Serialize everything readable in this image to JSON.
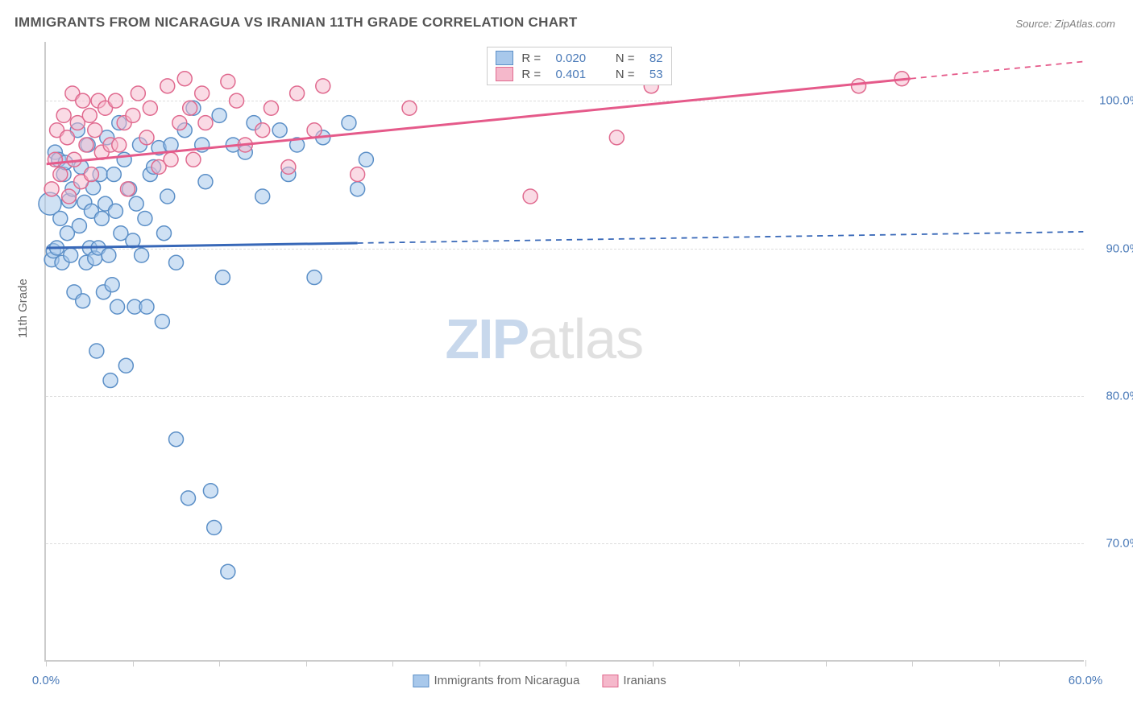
{
  "title": "IMMIGRANTS FROM NICARAGUA VS IRANIAN 11TH GRADE CORRELATION CHART",
  "source": "Source: ZipAtlas.com",
  "ylabel": "11th Grade",
  "watermark": {
    "part1": "ZIP",
    "part2": "atlas"
  },
  "chart": {
    "type": "scatter",
    "xlim": [
      0,
      60
    ],
    "ylim": [
      62,
      104
    ],
    "background_color": "#ffffff",
    "grid_color": "#dddddd",
    "axis_color": "#cccccc",
    "yticks": [
      {
        "v": 70,
        "label": "70.0%"
      },
      {
        "v": 80,
        "label": "80.0%"
      },
      {
        "v": 90,
        "label": "90.0%"
      },
      {
        "v": 100,
        "label": "100.0%"
      }
    ],
    "xticks_major": [
      0,
      60
    ],
    "xticks_minor": [
      5,
      10,
      15,
      20,
      25,
      30,
      35,
      40,
      45,
      50,
      55
    ],
    "xlabels": [
      {
        "v": 0,
        "label": "0.0%"
      },
      {
        "v": 60,
        "label": "60.0%"
      }
    ],
    "series": [
      {
        "name": "Immigrants from Nicaragua",
        "fill": "#a8c8eb",
        "stroke": "#5b8fc7",
        "fill_opacity": 0.55,
        "marker_r": 9,
        "line_color": "#3868b8",
        "line_width": 3,
        "r_value": "0.020",
        "n_value": "82",
        "trend": {
          "x1": 0,
          "y1": 90.0,
          "x2": 60,
          "y2": 91.1,
          "solid_until_x": 18
        },
        "points": [
          [
            0.2,
            93.0,
            14
          ],
          [
            0.3,
            89.2,
            9
          ],
          [
            0.4,
            89.8,
            9
          ],
          [
            0.5,
            96.5,
            9
          ],
          [
            0.6,
            90.0,
            9
          ],
          [
            0.7,
            96.0,
            9
          ],
          [
            0.8,
            92.0,
            9
          ],
          [
            0.9,
            89.0,
            9
          ],
          [
            1.0,
            95.0,
            9
          ],
          [
            1.1,
            95.8,
            9
          ],
          [
            1.2,
            91.0,
            9
          ],
          [
            1.3,
            93.2,
            9
          ],
          [
            1.4,
            89.5,
            9
          ],
          [
            1.5,
            94.0,
            9
          ],
          [
            1.6,
            87.0,
            9
          ],
          [
            1.8,
            98.0,
            9
          ],
          [
            1.9,
            91.5,
            9
          ],
          [
            2.0,
            95.5,
            9
          ],
          [
            2.1,
            86.4,
            9
          ],
          [
            2.2,
            93.1,
            9
          ],
          [
            2.3,
            89.0,
            9
          ],
          [
            2.4,
            97.0,
            9
          ],
          [
            2.5,
            90.0,
            9
          ],
          [
            2.6,
            92.5,
            9
          ],
          [
            2.7,
            94.1,
            9
          ],
          [
            2.8,
            89.3,
            9
          ],
          [
            2.9,
            83.0,
            9
          ],
          [
            3.0,
            90.0,
            9
          ],
          [
            3.1,
            95.0,
            9
          ],
          [
            3.2,
            92.0,
            9
          ],
          [
            3.3,
            87.0,
            9
          ],
          [
            3.4,
            93.0,
            9
          ],
          [
            3.5,
            97.5,
            9
          ],
          [
            3.6,
            89.5,
            9
          ],
          [
            3.7,
            81.0,
            9
          ],
          [
            3.8,
            87.5,
            9
          ],
          [
            3.9,
            95.0,
            9
          ],
          [
            4.0,
            92.5,
            9
          ],
          [
            4.1,
            86.0,
            9
          ],
          [
            4.2,
            98.5,
            9
          ],
          [
            4.3,
            91.0,
            9
          ],
          [
            4.5,
            96.0,
            9
          ],
          [
            4.6,
            82.0,
            9
          ],
          [
            4.8,
            94.0,
            9
          ],
          [
            5.0,
            90.5,
            9
          ],
          [
            5.1,
            86.0,
            9
          ],
          [
            5.2,
            93.0,
            9
          ],
          [
            5.4,
            97.0,
            9
          ],
          [
            5.5,
            89.5,
            9
          ],
          [
            5.7,
            92.0,
            9
          ],
          [
            5.8,
            86.0,
            9
          ],
          [
            6.0,
            95.0,
            9
          ],
          [
            6.2,
            95.5,
            9
          ],
          [
            6.5,
            96.8,
            9
          ],
          [
            6.7,
            85.0,
            9
          ],
          [
            6.8,
            91.0,
            9
          ],
          [
            7.0,
            93.5,
            9
          ],
          [
            7.2,
            97.0,
            9
          ],
          [
            7.5,
            77.0,
            9
          ],
          [
            7.5,
            89.0,
            9
          ],
          [
            8.0,
            98.0,
            9
          ],
          [
            8.2,
            73.0,
            9
          ],
          [
            8.5,
            99.5,
            9
          ],
          [
            9.0,
            97.0,
            9
          ],
          [
            9.2,
            94.5,
            9
          ],
          [
            9.5,
            73.5,
            9
          ],
          [
            9.7,
            71.0,
            9
          ],
          [
            10.0,
            99.0,
            9
          ],
          [
            10.2,
            88.0,
            9
          ],
          [
            10.5,
            68.0,
            9
          ],
          [
            10.8,
            97.0,
            9
          ],
          [
            11.5,
            96.5,
            9
          ],
          [
            12.0,
            98.5,
            9
          ],
          [
            12.5,
            93.5,
            9
          ],
          [
            13.5,
            98.0,
            9
          ],
          [
            14.0,
            95.0,
            9
          ],
          [
            14.5,
            97.0,
            9
          ],
          [
            15.5,
            88.0,
            9
          ],
          [
            16.0,
            97.5,
            9
          ],
          [
            17.5,
            98.5,
            9
          ],
          [
            18.0,
            94.0,
            9
          ],
          [
            18.5,
            96.0,
            9
          ]
        ]
      },
      {
        "name": "Iranians",
        "fill": "#f5b8cb",
        "stroke": "#e06a8f",
        "fill_opacity": 0.5,
        "marker_r": 9,
        "line_color": "#e55a8a",
        "line_width": 3,
        "r_value": "0.401",
        "n_value": "53",
        "trend": {
          "x1": 0,
          "y1": 95.7,
          "x2": 50,
          "y2": 101.5,
          "solid_until_x": 50
        },
        "points": [
          [
            0.3,
            94.0,
            9
          ],
          [
            0.5,
            96.0,
            9
          ],
          [
            0.6,
            98.0,
            9
          ],
          [
            0.8,
            95.0,
            9
          ],
          [
            1.0,
            99.0,
            9
          ],
          [
            1.2,
            97.5,
            9
          ],
          [
            1.3,
            93.5,
            9
          ],
          [
            1.5,
            100.5,
            9
          ],
          [
            1.6,
            96.0,
            9
          ],
          [
            1.8,
            98.5,
            9
          ],
          [
            2.0,
            94.5,
            9
          ],
          [
            2.1,
            100.0,
            9
          ],
          [
            2.3,
            97.0,
            9
          ],
          [
            2.5,
            99.0,
            9
          ],
          [
            2.6,
            95.0,
            9
          ],
          [
            2.8,
            98.0,
            9
          ],
          [
            3.0,
            100.0,
            9
          ],
          [
            3.2,
            96.5,
            9
          ],
          [
            3.4,
            99.5,
            9
          ],
          [
            3.7,
            97.0,
            9
          ],
          [
            4.0,
            100.0,
            9
          ],
          [
            4.2,
            97.0,
            9
          ],
          [
            4.5,
            98.5,
            9
          ],
          [
            4.7,
            94.0,
            9
          ],
          [
            5.0,
            99.0,
            9
          ],
          [
            5.3,
            100.5,
            9
          ],
          [
            5.8,
            97.5,
            9
          ],
          [
            6.0,
            99.5,
            9
          ],
          [
            6.5,
            95.5,
            9
          ],
          [
            7.0,
            101.0,
            9
          ],
          [
            7.2,
            96.0,
            9
          ],
          [
            7.7,
            98.5,
            9
          ],
          [
            8.0,
            101.5,
            9
          ],
          [
            8.3,
            99.5,
            9
          ],
          [
            8.5,
            96.0,
            9
          ],
          [
            9.0,
            100.5,
            9
          ],
          [
            9.2,
            98.5,
            9
          ],
          [
            10.5,
            101.3,
            9
          ],
          [
            11.0,
            100.0,
            9
          ],
          [
            11.5,
            97.0,
            9
          ],
          [
            12.5,
            98.0,
            9
          ],
          [
            13.0,
            99.5,
            9
          ],
          [
            14.0,
            95.5,
            9
          ],
          [
            14.5,
            100.5,
            9
          ],
          [
            15.5,
            98.0,
            9
          ],
          [
            16.0,
            101.0,
            9
          ],
          [
            18.0,
            95.0,
            9
          ],
          [
            21.0,
            99.5,
            9
          ],
          [
            28.0,
            93.5,
            9
          ],
          [
            33.0,
            97.5,
            9
          ],
          [
            35.0,
            101.0,
            9
          ],
          [
            47.0,
            101.0,
            9
          ],
          [
            49.5,
            101.5,
            9
          ]
        ]
      }
    ],
    "stat_box_labels": {
      "R": "R =",
      "N": "N ="
    }
  }
}
